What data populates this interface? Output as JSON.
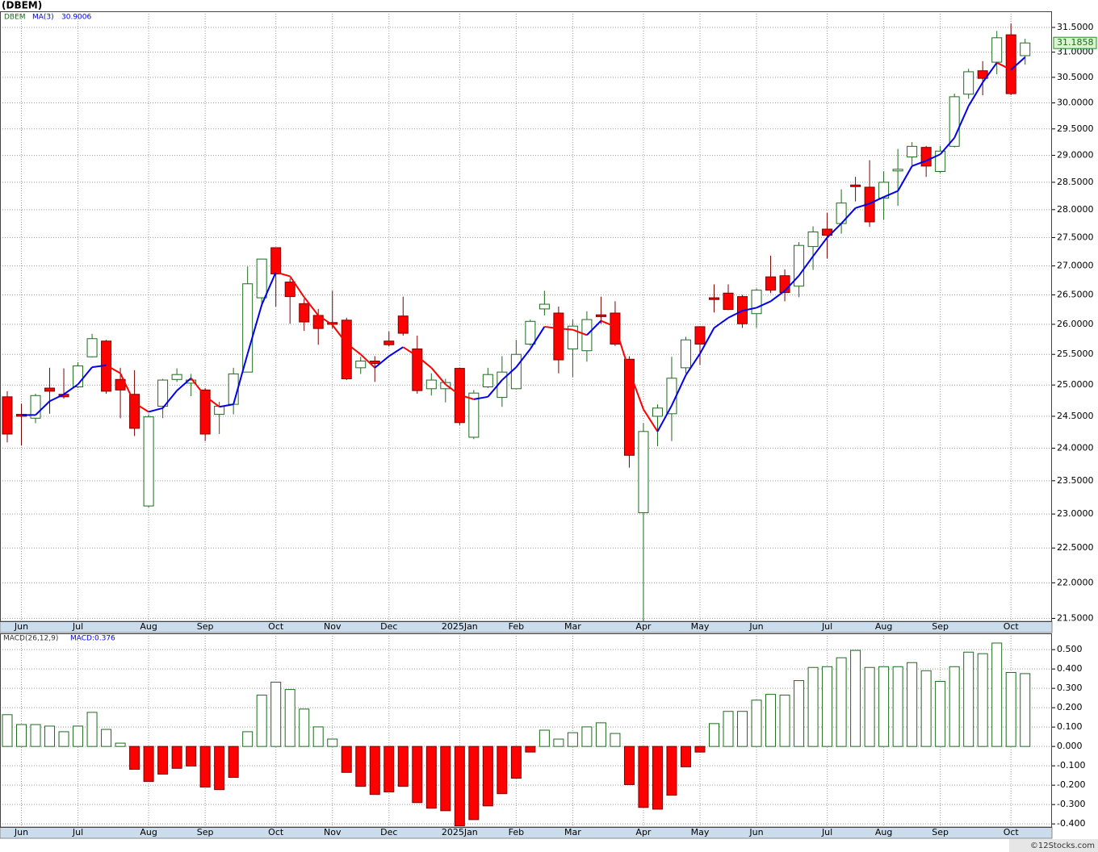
{
  "chart_data": [
    {
      "type": "candlestick",
      "title": "(DBEM)",
      "symbol": "DBEM",
      "log_scale": true,
      "grid": true,
      "up_color": "#ffffff",
      "up_border": "#1e6b1e",
      "down_color": "#ff0000",
      "down_border": "#7a0000",
      "categories": [
        null,
        "Jun",
        null,
        null,
        null,
        "Jul",
        null,
        null,
        null,
        null,
        "Aug",
        null,
        null,
        null,
        "Sep",
        null,
        null,
        null,
        null,
        "Oct",
        null,
        null,
        null,
        "Nov",
        null,
        null,
        null,
        "Dec",
        null,
        null,
        null,
        null,
        "2025Jan",
        null,
        null,
        null,
        "Feb",
        null,
        null,
        null,
        "Mar",
        null,
        null,
        null,
        null,
        "Apr",
        null,
        null,
        null,
        "May",
        null,
        null,
        null,
        "Jun",
        null,
        null,
        null,
        null,
        "Jul",
        null,
        null,
        null,
        "Aug",
        null,
        null,
        null,
        "Sep",
        null,
        null,
        null,
        null,
        "Oct",
        null
      ],
      "open": [
        24.81,
        24.53,
        24.47,
        24.95,
        24.85,
        24.97,
        25.46,
        25.72,
        25.09,
        24.85,
        23.12,
        24.66,
        25.09,
        25.03,
        24.92,
        24.53,
        24.69,
        25.21,
        26.45,
        27.32,
        26.72,
        26.35,
        26.15,
        26.03,
        26.07,
        25.28,
        25.39,
        25.72,
        26.14,
        25.59,
        24.94,
        24.94,
        25.27,
        24.17,
        24.97,
        24.8,
        24.94,
        25.67,
        26.26,
        26.19,
        25.59,
        25.56,
        26.16,
        26.19,
        25.42,
        23.02,
        24.5,
        24.54,
        25.28,
        25.96,
        26.45,
        26.53,
        26.47,
        26.18,
        26.81,
        26.83,
        26.65,
        27.34,
        27.65,
        27.75,
        28.45,
        28.41,
        28.21,
        28.71,
        28.97,
        29.15,
        28.7,
        29.17,
        30.17,
        30.63,
        30.8,
        31.35,
        30.93
      ],
      "high": [
        24.9,
        24.7,
        24.86,
        25.28,
        25.27,
        25.37,
        25.84,
        25.74,
        25.28,
        25.24,
        24.53,
        25.1,
        25.27,
        25.18,
        24.95,
        24.73,
        25.28,
        26.99,
        27.12,
        27.32,
        26.78,
        26.43,
        26.26,
        26.57,
        26.11,
        25.46,
        25.47,
        25.88,
        26.47,
        25.81,
        25.19,
        25.1,
        25.28,
        24.92,
        25.28,
        25.47,
        25.74,
        26.08,
        26.57,
        26.3,
        26.08,
        26.22,
        26.47,
        26.39,
        25.47,
        24.39,
        24.69,
        25.46,
        25.79,
        25.96,
        26.68,
        26.68,
        26.5,
        26.61,
        27.18,
        26.94,
        27.42,
        27.7,
        27.94,
        28.37,
        28.6,
        28.91,
        28.7,
        29.12,
        29.25,
        29.18,
        29.18,
        30.18,
        30.67,
        30.82,
        31.43,
        31.58,
        31.27
      ],
      "low": [
        24.09,
        24.04,
        24.39,
        24.54,
        24.78,
        24.95,
        25.45,
        24.86,
        24.47,
        24.19,
        23.1,
        24.47,
        25.05,
        24.82,
        24.11,
        24.22,
        24.53,
        25.21,
        26.3,
        26.3,
        26.01,
        25.89,
        25.66,
        25.93,
        25.08,
        25.18,
        25.05,
        25.63,
        25.81,
        24.86,
        24.83,
        24.72,
        24.36,
        24.14,
        24.95,
        24.65,
        24.94,
        25.64,
        26.15,
        25.19,
        25.13,
        25.38,
        26.01,
        25.64,
        23.7,
        21.46,
        24.03,
        24.11,
        25.19,
        25.33,
        26.2,
        26.24,
        25.94,
        25.94,
        26.53,
        26.39,
        26.46,
        26.93,
        27.13,
        27.57,
        28.15,
        27.69,
        27.82,
        28.07,
        28.8,
        28.6,
        28.67,
        29.15,
        30.08,
        30.15,
        30.56,
        30.15,
        30.75
      ],
      "close": [
        24.22,
        24.5,
        24.83,
        24.9,
        24.81,
        25.31,
        25.76,
        24.9,
        24.92,
        24.31,
        24.49,
        25.08,
        25.17,
        25.08,
        24.22,
        24.66,
        25.18,
        26.69,
        27.12,
        26.86,
        26.47,
        26.04,
        25.93,
        26.0,
        25.1,
        25.39,
        25.35,
        25.66,
        25.85,
        24.91,
        25.08,
        25.04,
        24.4,
        24.87,
        25.17,
        25.21,
        25.5,
        26.05,
        26.34,
        25.41,
        25.97,
        26.08,
        26.13,
        25.67,
        23.89,
        24.26,
        24.63,
        25.11,
        25.74,
        25.67,
        26.42,
        26.25,
        26.01,
        26.58,
        26.58,
        26.54,
        27.36,
        27.6,
        27.54,
        28.12,
        28.42,
        27.78,
        28.5,
        28.74,
        29.17,
        28.8,
        29.08,
        30.12,
        30.61,
        30.48,
        31.29,
        30.18,
        31.1858
      ],
      "ma": {
        "name": "MA(3)",
        "rise_color": "#0000ee",
        "fall_color": "#ff0000",
        "values": [
          null,
          24.52,
          24.52,
          24.74,
          24.85,
          25.01,
          25.29,
          25.32,
          25.19,
          24.71,
          24.57,
          24.63,
          24.91,
          25.11,
          24.82,
          24.65,
          24.69,
          25.51,
          26.33,
          26.89,
          26.82,
          26.46,
          26.15,
          25.99,
          25.68,
          25.5,
          25.28,
          25.47,
          25.62,
          25.47,
          25.28,
          25.01,
          24.84,
          24.77,
          24.81,
          25.08,
          25.29,
          25.59,
          25.96,
          25.93,
          25.91,
          25.82,
          26.06,
          25.96,
          25.23,
          24.61,
          24.26,
          24.67,
          25.16,
          25.51,
          25.94,
          26.11,
          26.23,
          26.28,
          26.39,
          26.57,
          26.83,
          27.17,
          27.5,
          27.75,
          28.03,
          28.11,
          28.23,
          28.34,
          28.8,
          28.9,
          29.02,
          29.33,
          29.94,
          30.4,
          30.79,
          30.65,
          30.9006
        ]
      },
      "ylim": [
        21.46,
        31.83
      ],
      "yticks": [
        {
          "value": 21.5,
          "label": "21.5000"
        },
        {
          "value": 22,
          "label": "22.0000"
        },
        {
          "value": 22.5,
          "label": "22.5000"
        },
        {
          "value": 23,
          "label": "23.0000"
        },
        {
          "value": 23.5,
          "label": "23.5000"
        },
        {
          "value": 24,
          "label": "24.0000"
        },
        {
          "value": 24.5,
          "label": "24.5000"
        },
        {
          "value": 25,
          "label": "25.0000"
        },
        {
          "value": 25.5,
          "label": "25.5000"
        },
        {
          "value": 26,
          "label": "26.0000"
        },
        {
          "value": 26.5,
          "label": "26.5000"
        },
        {
          "value": 27,
          "label": "27.0000"
        },
        {
          "value": 27.5,
          "label": "27.5000"
        },
        {
          "value": 28,
          "label": "28.0000"
        },
        {
          "value": 28.5,
          "label": "28.5000"
        },
        {
          "value": 29,
          "label": "29.0000"
        },
        {
          "value": 29.5,
          "label": "29.5000"
        },
        {
          "value": 30,
          "label": "30.0000"
        },
        {
          "value": 30.5,
          "label": "30.5000"
        },
        {
          "value": 31,
          "label": "31.0000"
        },
        {
          "value": 31.5,
          "label": "31.5000"
        }
      ]
    },
    {
      "type": "bar",
      "title": "MACD(26,12,9)",
      "legend_label": "MACD:0.376",
      "grid": true,
      "pos_color": "#ffffff",
      "pos_border": "#1e6b1e",
      "neg_color": "#ff0000",
      "neg_border": "#7a0000",
      "values": [
        0.164,
        0.113,
        0.113,
        0.105,
        0.076,
        0.105,
        0.176,
        0.088,
        0.017,
        -0.118,
        -0.181,
        -0.143,
        -0.113,
        -0.101,
        -0.21,
        -0.223,
        -0.16,
        0.076,
        0.265,
        0.332,
        0.294,
        0.193,
        0.101,
        0.038,
        -0.134,
        -0.206,
        -0.248,
        -0.235,
        -0.206,
        -0.29,
        -0.319,
        -0.332,
        -0.41,
        -0.378,
        -0.307,
        -0.244,
        -0.164,
        -0.029,
        0.084,
        0.038,
        0.071,
        0.101,
        0.122,
        0.067,
        -0.197,
        -0.315,
        -0.324,
        -0.252,
        -0.105,
        -0.029,
        0.118,
        0.181,
        0.181,
        0.239,
        0.269,
        0.265,
        0.34,
        0.408,
        0.412,
        0.458,
        0.496,
        0.408,
        0.412,
        0.412,
        0.433,
        0.391,
        0.336,
        0.412,
        0.487,
        0.479,
        0.534,
        0.382,
        0.376
      ],
      "ylim": [
        -0.416,
        0.584
      ],
      "yticks": [
        {
          "value": 0.5,
          "label": "0.500"
        },
        {
          "value": 0.4,
          "label": "0.400"
        },
        {
          "value": 0.3,
          "label": "0.300"
        },
        {
          "value": 0.2,
          "label": "0.200"
        },
        {
          "value": 0.1,
          "label": "0.100"
        },
        {
          "value": 0,
          "label": "0.000"
        },
        {
          "value": -0.1,
          "label": "-0.100"
        },
        {
          "value": -0.2,
          "label": "-0.200"
        },
        {
          "value": -0.3,
          "label": "-0.300"
        },
        {
          "value": -0.4,
          "label": "-0.400"
        }
      ]
    }
  ],
  "footer": "©12Stocks.com"
}
